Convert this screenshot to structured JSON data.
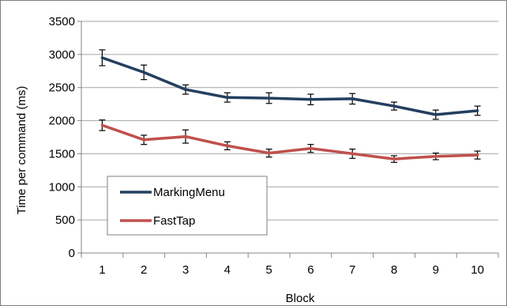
{
  "chart_data": {
    "type": "line",
    "xlabel": "Block",
    "ylabel": "Time per command (ms)",
    "categories": [
      "1",
      "2",
      "3",
      "4",
      "5",
      "6",
      "7",
      "8",
      "9",
      "10"
    ],
    "ylim": [
      0,
      3500
    ],
    "yticks": [
      0,
      500,
      1000,
      1500,
      2000,
      2500,
      3000,
      3500
    ],
    "grid": "horizontal",
    "legend_position": "bottom-left",
    "series": [
      {
        "name": "MarkingMenu",
        "color": "#243F60",
        "values": [
          2950,
          2730,
          2470,
          2350,
          2340,
          2320,
          2330,
          2220,
          2090,
          2150
        ],
        "errors": [
          120,
          110,
          70,
          70,
          80,
          80,
          80,
          60,
          70,
          70
        ]
      },
      {
        "name": "FastTap",
        "color": "#C0504D",
        "values": [
          1930,
          1710,
          1760,
          1620,
          1510,
          1580,
          1500,
          1420,
          1460,
          1480
        ],
        "errors": [
          80,
          70,
          100,
          60,
          60,
          60,
          70,
          50,
          50,
          60
        ]
      }
    ]
  }
}
